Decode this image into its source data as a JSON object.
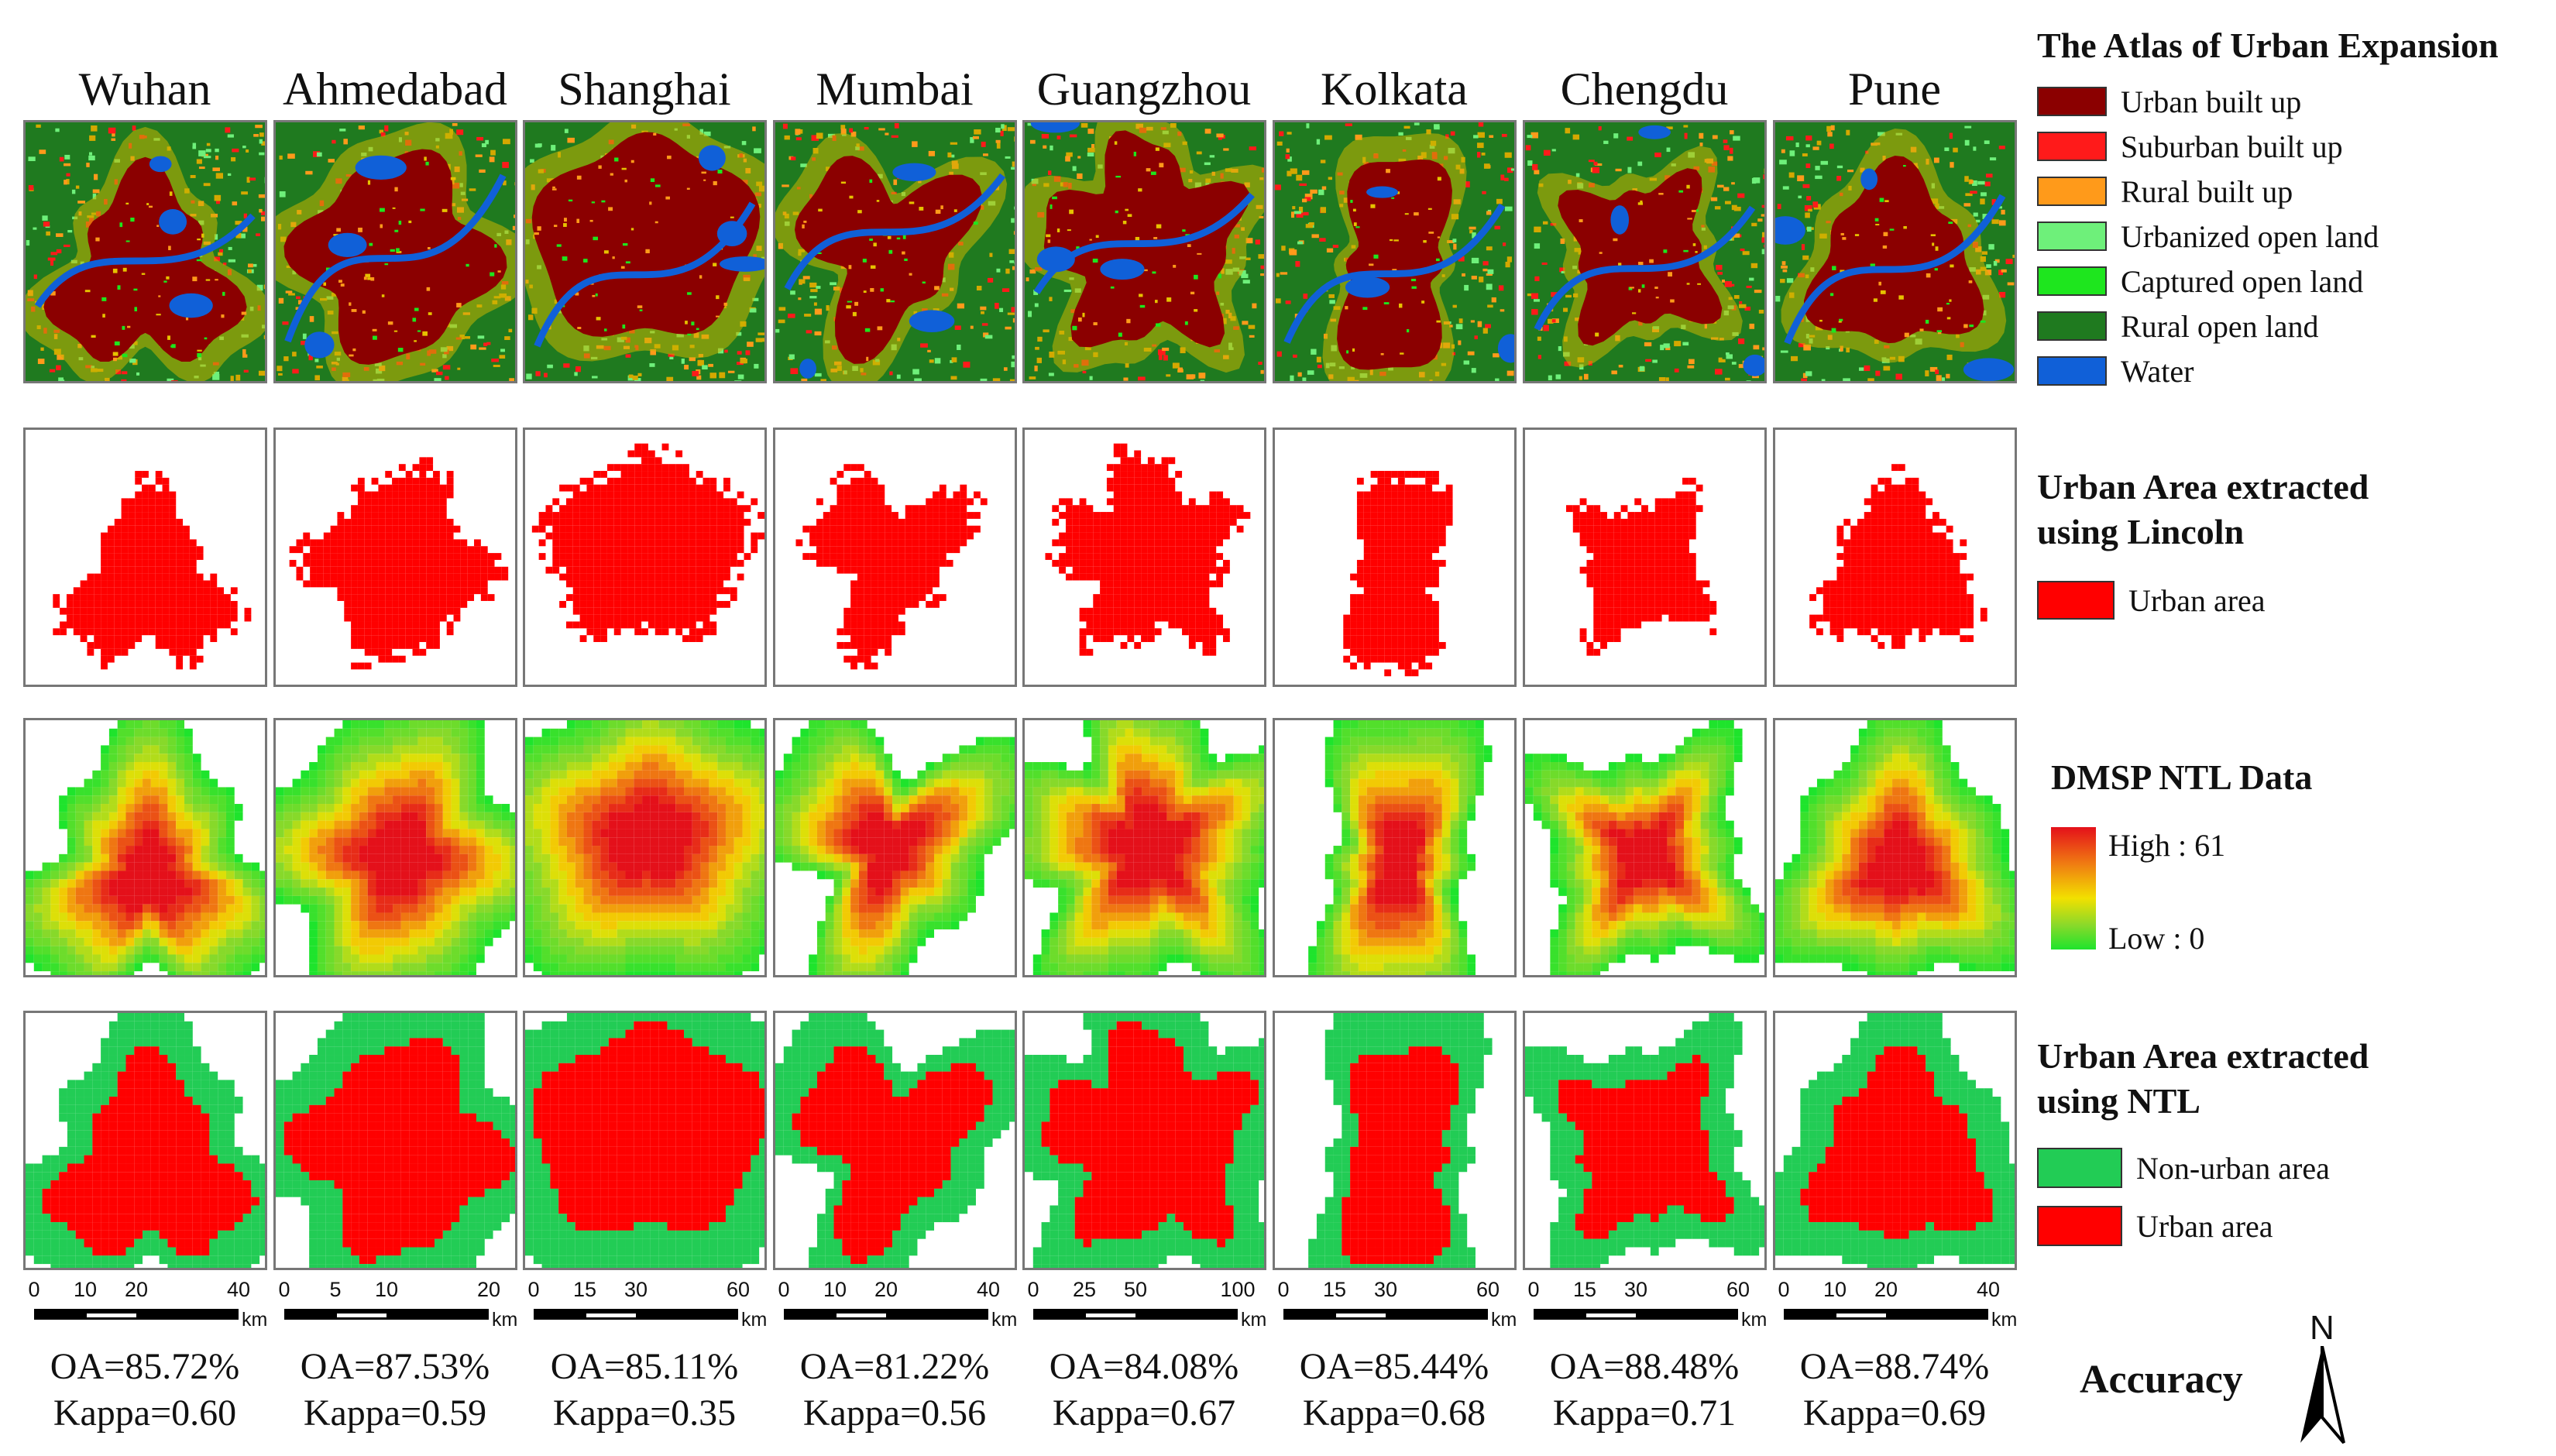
{
  "cities": [
    {
      "name": "Wuhan",
      "oa": "OA=85.72%",
      "kappa": "Kappa=0.60",
      "scale": {
        "ticks": [
          "0",
          "10",
          "20",
          "40"
        ],
        "unit": "km"
      }
    },
    {
      "name": "Ahmedabad",
      "oa": "OA=87.53%",
      "kappa": "Kappa=0.59",
      "scale": {
        "ticks": [
          "0",
          "5",
          "10",
          "20"
        ],
        "unit": "km"
      }
    },
    {
      "name": "Shanghai",
      "oa": "OA=85.11%",
      "kappa": "Kappa=0.35",
      "scale": {
        "ticks": [
          "0",
          "15",
          "30",
          "60"
        ],
        "unit": "km"
      }
    },
    {
      "name": "Mumbai",
      "oa": "OA=81.22%",
      "kappa": "Kappa=0.56",
      "scale": {
        "ticks": [
          "0",
          "10",
          "20",
          "40"
        ],
        "unit": "km"
      }
    },
    {
      "name": "Guangzhou",
      "oa": "OA=84.08%",
      "kappa": "Kappa=0.67",
      "scale": {
        "ticks": [
          "0",
          "25",
          "50",
          "100"
        ],
        "unit": "km"
      }
    },
    {
      "name": "Kolkata",
      "oa": "OA=85.44%",
      "kappa": "Kappa=0.68",
      "scale": {
        "ticks": [
          "0",
          "15",
          "30",
          "60"
        ],
        "unit": "km"
      }
    },
    {
      "name": "Chengdu",
      "oa": "OA=88.48%",
      "kappa": "Kappa=0.71",
      "scale": {
        "ticks": [
          "0",
          "15",
          "30",
          "60"
        ],
        "unit": "km"
      }
    },
    {
      "name": "Pune",
      "oa": "OA=88.74%",
      "kappa": "Kappa=0.69",
      "scale": {
        "ticks": [
          "0",
          "10",
          "20",
          "40"
        ],
        "unit": "km"
      }
    }
  ],
  "legend_atlas": {
    "title": "The Atlas of Urban Expansion",
    "items": [
      {
        "label": "Urban built up",
        "color": "#8b0000"
      },
      {
        "label": "Suburban built up",
        "color": "#ff1a1a"
      },
      {
        "label": "Rural built up",
        "color": "#ff9a1a"
      },
      {
        "label": "Urbanized open land",
        "color": "#6ef07a"
      },
      {
        "label": "Captured open land",
        "color": "#1ee61e"
      },
      {
        "label": "Rural open land",
        "color": "#1f7a1f"
      },
      {
        "label": "Water",
        "color": "#1060d8"
      }
    ]
  },
  "legend_lincoln": {
    "title_line1": "Urban Area extracted",
    "title_line2": "using Lincoln",
    "item": {
      "label": "Urban area",
      "color": "#ff0000"
    }
  },
  "legend_ntl": {
    "title": "DMSP NTL Data",
    "high": "High : 61",
    "low": "Low : 0"
  },
  "legend_ntl_class": {
    "title_line1": "Urban Area extracted",
    "title_line2": "using NTL",
    "items": [
      {
        "label": "Non-urban area",
        "color": "#22cc55"
      },
      {
        "label": "Urban area",
        "color": "#ff0000"
      }
    ]
  },
  "accuracy_label": "Accuracy",
  "north_label": "N"
}
